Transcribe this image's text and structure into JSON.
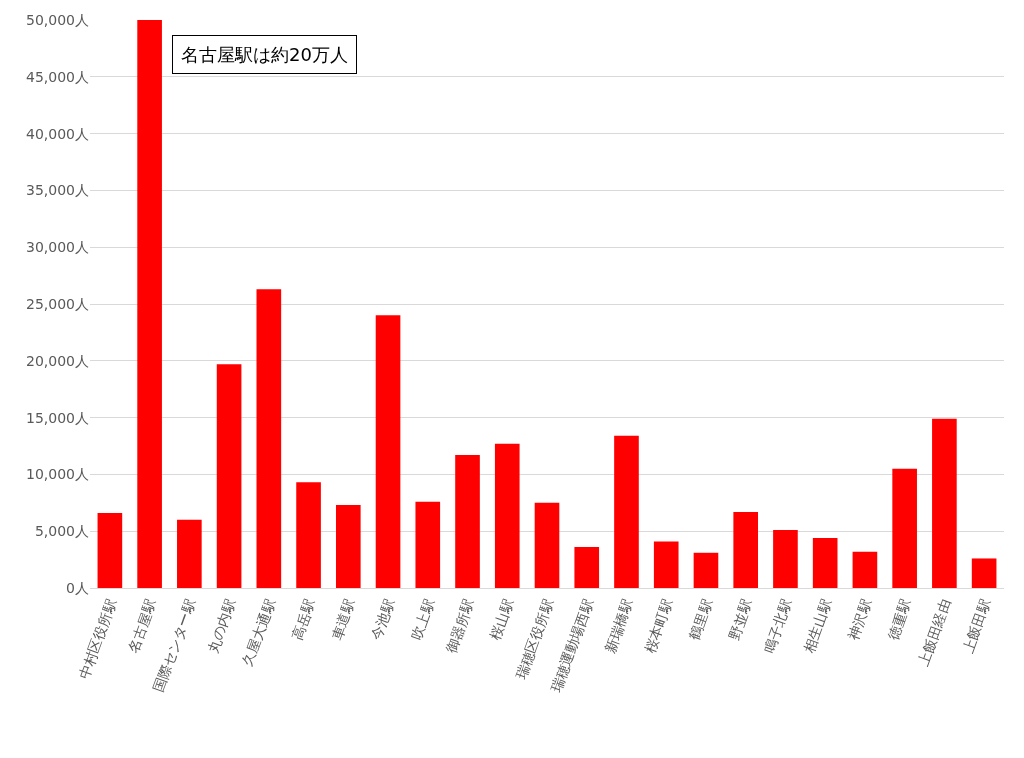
{
  "chart_data": {
    "type": "bar",
    "categories": [
      "中村区役所駅",
      "名古屋駅",
      "国際センター駅",
      "丸の内駅",
      "久屋大通駅",
      "高岳駅",
      "車道駅",
      "今池駅",
      "吹上駅",
      "御器所駅",
      "桜山駅",
      "瑞穂区役所駅",
      "瑞穂運動場西駅",
      "新瑞橋駅",
      "桜本町駅",
      "鶴里駅",
      "野並駅",
      "鳴子北駅",
      "相生山駅",
      "神沢駅",
      "徳重駅",
      "上飯田経由",
      "上飯田駅"
    ],
    "values": [
      6600,
      50000,
      6000,
      19700,
      26300,
      9300,
      7300,
      24000,
      7600,
      11700,
      12700,
      7500,
      3600,
      13400,
      4100,
      3100,
      6700,
      5100,
      4400,
      3200,
      10500,
      14900,
      2600
    ],
    "color": "#ff0000",
    "ylim": [
      0,
      50000
    ],
    "yticks": [
      {
        "value": 0,
        "label": "0人"
      },
      {
        "value": 5000,
        "label": "5,000人"
      },
      {
        "value": 10000,
        "label": "10,000人"
      },
      {
        "value": 15000,
        "label": "15,000人"
      },
      {
        "value": 20000,
        "label": "20,000人"
      },
      {
        "value": 25000,
        "label": "25,000人"
      },
      {
        "value": 30000,
        "label": "30,000人"
      },
      {
        "value": 35000,
        "label": "35,000人"
      },
      {
        "value": 40000,
        "label": "40,000人"
      },
      {
        "value": 45000,
        "label": "45,000人"
      },
      {
        "value": 50000,
        "label": "50,000人"
      }
    ],
    "grid": "y",
    "legend": false,
    "annotations": [
      "名古屋駅は約20万人"
    ]
  }
}
